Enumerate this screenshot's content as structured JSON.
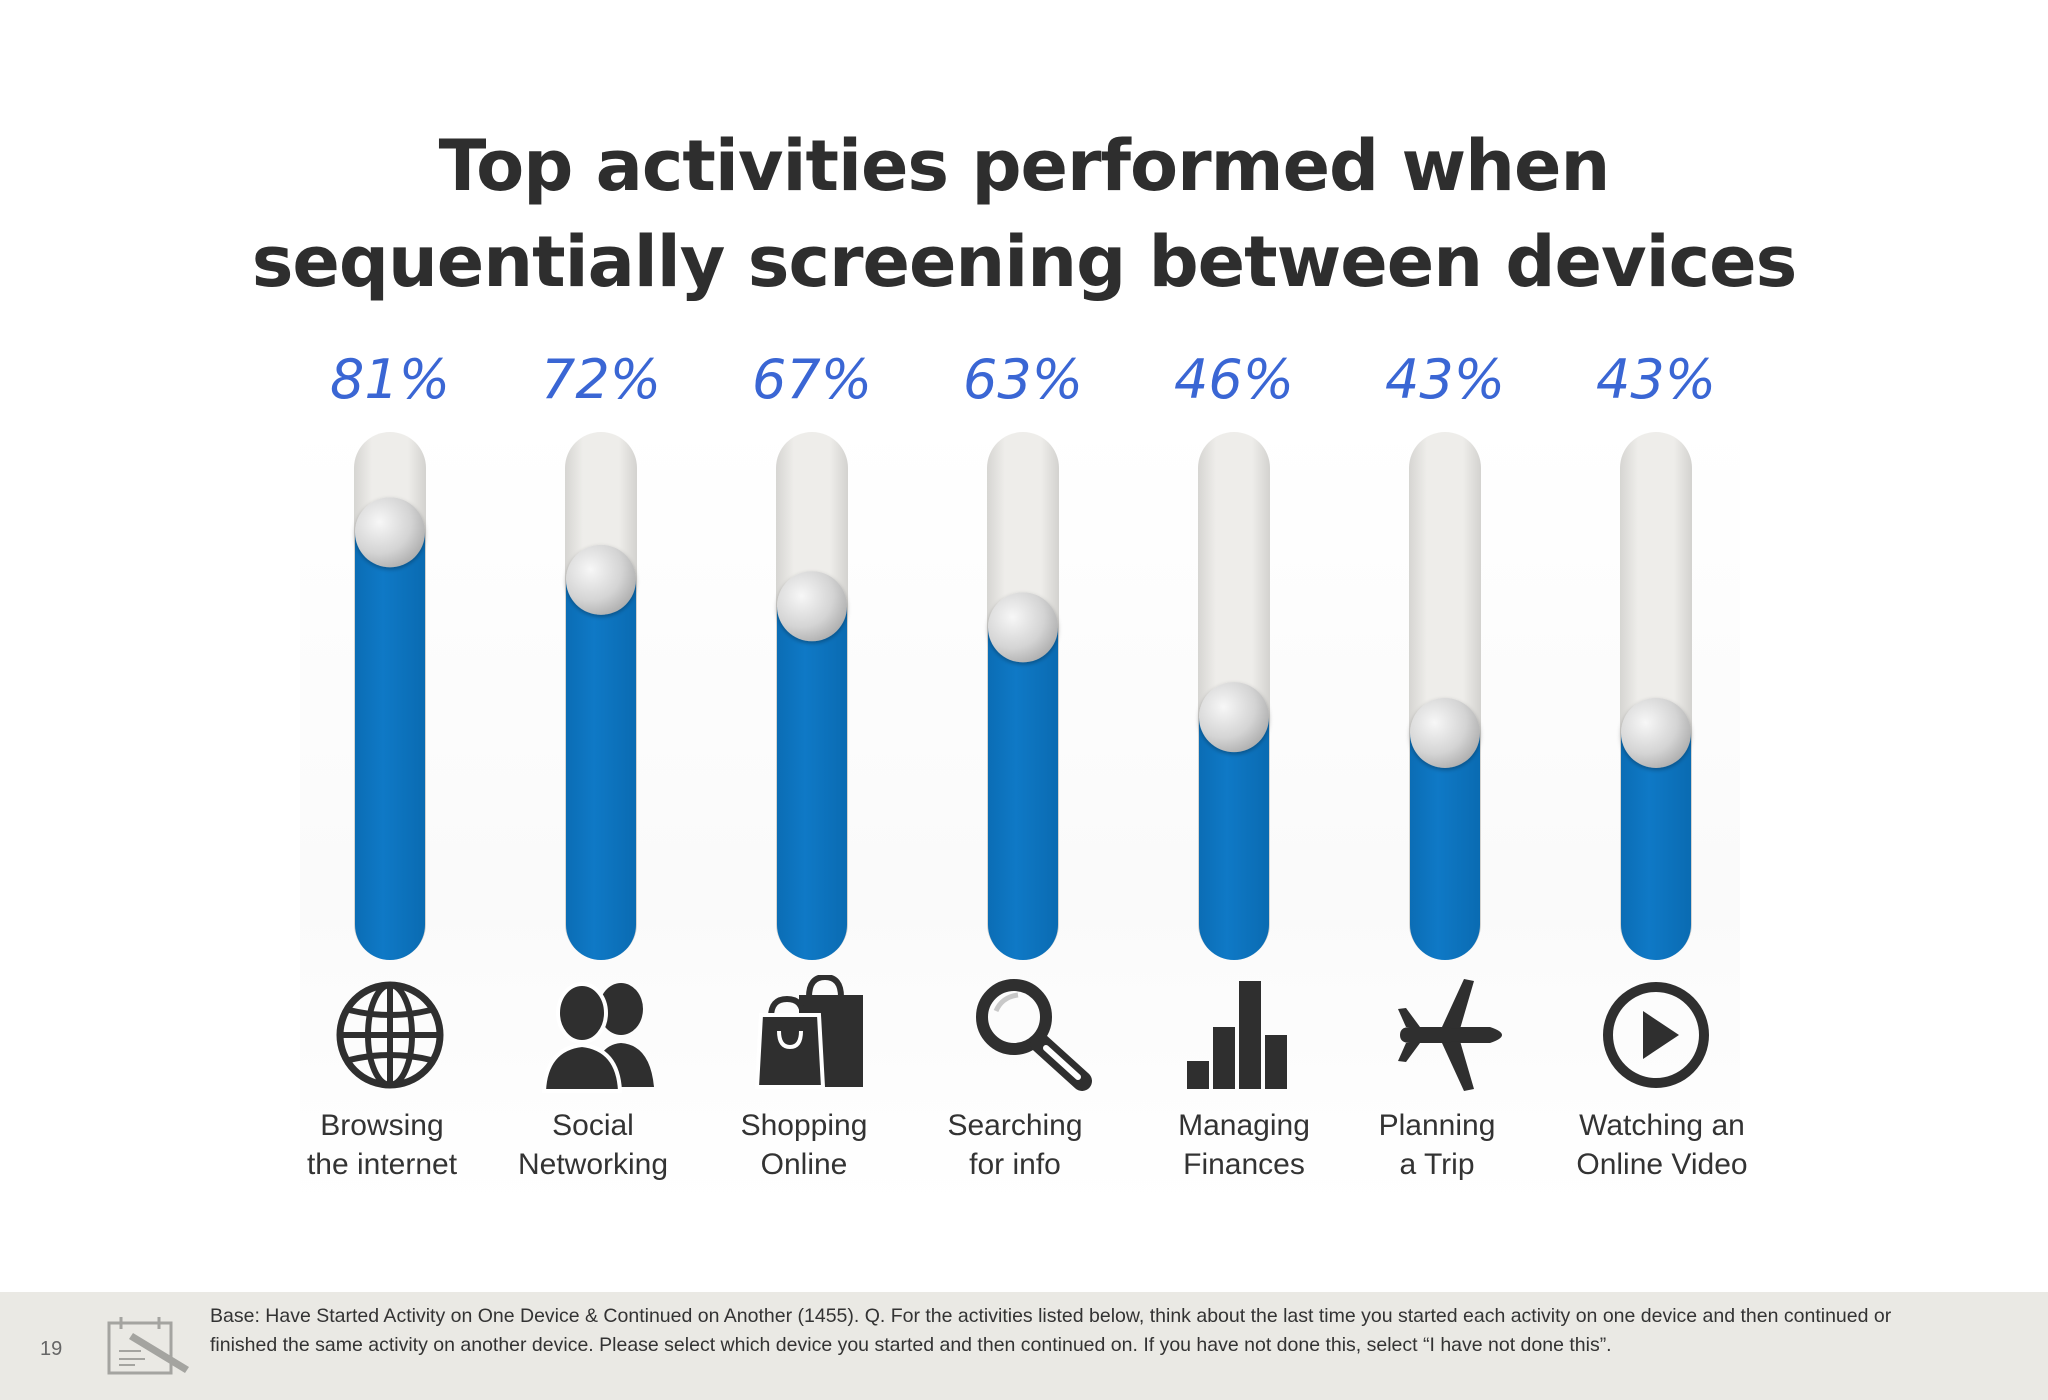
{
  "title": {
    "line1": "Top activities performed when",
    "line2": "sequentially screening between devices"
  },
  "chart_data": {
    "type": "bar",
    "title": "Top activities performed when sequentially screening between devices",
    "ylim": [
      0,
      100
    ],
    "unit": "%",
    "grid": false,
    "categories": [
      "Browsing the internet",
      "Social Networking",
      "Shopping Online",
      "Searching for info",
      "Managing Finances",
      "Planning a Trip",
      "Watching an Online Video"
    ],
    "values": [
      81,
      72,
      67,
      63,
      46,
      43,
      43
    ],
    "value_labels": [
      "81%",
      "72%",
      "67%",
      "63%",
      "46%",
      "43%",
      "43%"
    ],
    "label_lines": [
      [
        "Browsing",
        "the internet"
      ],
      [
        "Social",
        "Networking"
      ],
      [
        "Shopping",
        "Online"
      ],
      [
        "Searching",
        "for info"
      ],
      [
        "Managing",
        "Finances"
      ],
      [
        "Planning",
        "a Trip"
      ],
      [
        "Watching an",
        "Online Video"
      ]
    ],
    "icons": [
      "globe-icon",
      "people-icon",
      "shopping-bags-icon",
      "magnifier-icon",
      "bar-chart-icon",
      "airplane-icon",
      "play-icon"
    ],
    "colors": {
      "fill": "#0e76c2",
      "track": "#e7e6e3",
      "value_text": "#3a66d4",
      "icon": "#2f2f2f"
    }
  },
  "footer": {
    "page_number": "19",
    "footnote": "Base: Have Started Activity on One Device & Continued on Another (1455). Q. For the activities listed below, think about the last time you started each activity on one device and then continued or finished the same activity on another device. Please select which device you started and then continued on. If you have not done this, select “I have not done this”."
  }
}
